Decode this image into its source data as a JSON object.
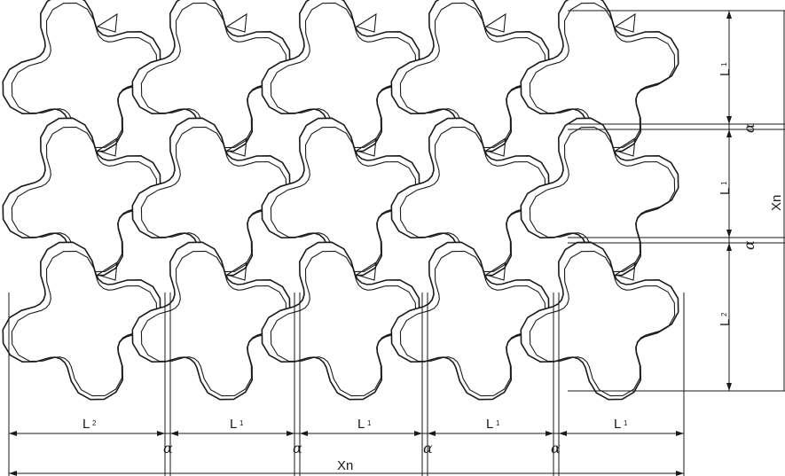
{
  "diagram": {
    "tiles": {
      "rows": 3,
      "cols": 5
    },
    "bottom_dimensions": [
      {
        "label": "L",
        "sub": "2"
      },
      {
        "label": "α"
      },
      {
        "label": "L",
        "sub": "1"
      },
      {
        "label": "α"
      },
      {
        "label": "L",
        "sub": "1"
      },
      {
        "label": "α"
      },
      {
        "label": "L",
        "sub": "1"
      },
      {
        "label": "α"
      },
      {
        "label": "L",
        "sub": "1"
      }
    ],
    "bottom_total": "Xn",
    "right_dimensions": [
      {
        "label": "L",
        "sub": "1"
      },
      {
        "label": "α"
      },
      {
        "label": "L",
        "sub": "1"
      },
      {
        "label": "α"
      },
      {
        "label": "L",
        "sub": "2"
      }
    ],
    "right_total": "Xn"
  }
}
